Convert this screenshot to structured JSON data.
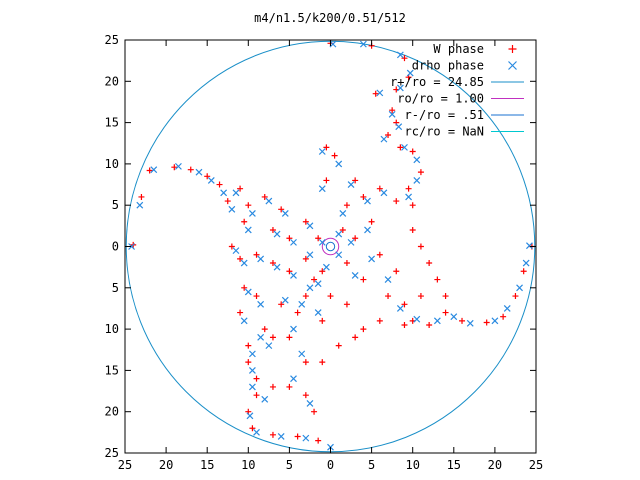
{
  "chart_data": {
    "type": "scatter",
    "title": "m4/n1.5/k200/0.51/512",
    "xlim": [
      -25,
      25
    ],
    "ylim": [
      -25,
      25
    ],
    "ticks": [
      -25,
      -20,
      -15,
      -10,
      -5,
      0,
      5,
      10,
      15,
      20,
      25
    ],
    "tick_labels": [
      "25",
      "20",
      "15",
      "10",
      "5",
      "0",
      "5",
      "10",
      "15",
      "20",
      "25"
    ],
    "grid": false,
    "legend_position": "top-right",
    "series": [
      {
        "name": "W phase",
        "kind": "points",
        "marker": "plus",
        "color": "#ff0000",
        "points": [
          [
            0,
            24.6
          ],
          [
            5,
            24.3
          ],
          [
            9,
            22.8
          ],
          [
            9.5,
            20.5
          ],
          [
            8,
            19
          ],
          [
            5.5,
            18.5
          ],
          [
            7.5,
            16.5
          ],
          [
            8,
            15
          ],
          [
            7,
            13.5
          ],
          [
            8.5,
            12
          ],
          [
            10,
            11.5
          ],
          [
            11,
            9
          ],
          [
            9.5,
            7
          ],
          [
            10,
            5
          ],
          [
            -0.5,
            12
          ],
          [
            0.5,
            11
          ],
          [
            3,
            8
          ],
          [
            4,
            6
          ],
          [
            6,
            7
          ],
          [
            -0.5,
            8
          ],
          [
            2,
            5
          ],
          [
            5,
            3
          ],
          [
            3,
            1
          ],
          [
            1.5,
            2
          ],
          [
            8,
            5.5
          ],
          [
            -24,
            0.2
          ],
          [
            -23,
            6
          ],
          [
            -22,
            9.2
          ],
          [
            -19,
            9.6
          ],
          [
            -17,
            9.3
          ],
          [
            -15,
            8.5
          ],
          [
            -13.5,
            7.5
          ],
          [
            -12.5,
            5.5
          ],
          [
            -11,
            7
          ],
          [
            -10,
            5
          ],
          [
            -10.5,
            3
          ],
          [
            -8,
            6
          ],
          [
            -6,
            4.5
          ],
          [
            -7,
            2
          ],
          [
            -5,
            1
          ],
          [
            -3,
            3
          ],
          [
            -1.5,
            1
          ],
          [
            -12,
            0
          ],
          [
            -11,
            -1.5
          ],
          [
            -9,
            -1
          ],
          [
            -7,
            -2
          ],
          [
            -5,
            -3
          ],
          [
            -3,
            -1.5
          ],
          [
            -2,
            -4
          ],
          [
            -10.5,
            -5
          ],
          [
            -11,
            -8
          ],
          [
            -9,
            -6
          ],
          [
            -8,
            -10
          ],
          [
            -10,
            -12
          ],
          [
            -7,
            -11
          ],
          [
            -10,
            -14
          ],
          [
            -9,
            -16
          ],
          [
            -7,
            -17
          ],
          [
            -9,
            -18
          ],
          [
            -10,
            -20
          ],
          [
            -9.5,
            -22
          ],
          [
            -7,
            -22.8
          ],
          [
            -4,
            -23
          ],
          [
            -1.5,
            -23.5
          ],
          [
            -2,
            -20
          ],
          [
            -5,
            -17
          ],
          [
            -3,
            -14
          ],
          [
            -5,
            -11
          ],
          [
            -4,
            -8
          ],
          [
            -1,
            -9
          ],
          [
            -6,
            -7
          ],
          [
            -3,
            -6
          ],
          [
            -1,
            -3
          ],
          [
            2,
            -2
          ],
          [
            4,
            -4
          ],
          [
            6,
            -1
          ],
          [
            8,
            -3
          ],
          [
            7,
            -6
          ],
          [
            9,
            -7
          ],
          [
            10,
            -9
          ],
          [
            12,
            -9.5
          ],
          [
            14,
            -8
          ],
          [
            16,
            -9
          ],
          [
            19,
            -9.2
          ],
          [
            21,
            -8.5
          ],
          [
            22.5,
            -6
          ],
          [
            23.5,
            -3
          ],
          [
            24.5,
            0
          ],
          [
            10,
            2
          ],
          [
            11,
            0
          ],
          [
            12,
            -2
          ],
          [
            13,
            -4
          ],
          [
            14,
            -6
          ],
          [
            11,
            -6
          ],
          [
            9,
            -9.5
          ],
          [
            6,
            -9
          ],
          [
            4,
            -10
          ],
          [
            2,
            -7
          ],
          [
            0,
            -6
          ],
          [
            -1,
            -14
          ],
          [
            1,
            -12
          ],
          [
            3,
            -11
          ],
          [
            -3,
            -18
          ]
        ]
      },
      {
        "name": "drho phase",
        "kind": "points",
        "marker": "cross",
        "color": "#2a8ae0",
        "points": [
          [
            0.3,
            24.5
          ],
          [
            4,
            24.5
          ],
          [
            8.5,
            23.2
          ],
          [
            9.7,
            21
          ],
          [
            8.5,
            19.2
          ],
          [
            6,
            18.6
          ],
          [
            7.5,
            16
          ],
          [
            8.3,
            14.5
          ],
          [
            6.5,
            13
          ],
          [
            9,
            12
          ],
          [
            10.5,
            10.5
          ],
          [
            10.5,
            8
          ],
          [
            9.5,
            6
          ],
          [
            -1,
            11.5
          ],
          [
            1,
            10
          ],
          [
            2.5,
            7.5
          ],
          [
            4.5,
            5.5
          ],
          [
            6.5,
            6.5
          ],
          [
            -1,
            7
          ],
          [
            1.5,
            4
          ],
          [
            4.5,
            2
          ],
          [
            2.5,
            0.5
          ],
          [
            1,
            1.5
          ],
          [
            -24.2,
            0
          ],
          [
            -23.2,
            5
          ],
          [
            -21.5,
            9.3
          ],
          [
            -18.5,
            9.7
          ],
          [
            -16,
            9
          ],
          [
            -14.5,
            8
          ],
          [
            -13,
            6.5
          ],
          [
            -12,
            4.5
          ],
          [
            -11.5,
            6.5
          ],
          [
            -9.5,
            4
          ],
          [
            -10,
            2
          ],
          [
            -7.5,
            5.5
          ],
          [
            -5.5,
            4
          ],
          [
            -6.5,
            1.5
          ],
          [
            -4.5,
            0.5
          ],
          [
            -2.5,
            2.5
          ],
          [
            -1,
            0.5
          ],
          [
            -11.5,
            -0.5
          ],
          [
            -10.5,
            -2
          ],
          [
            -8.5,
            -1.5
          ],
          [
            -6.5,
            -2.5
          ],
          [
            -4.5,
            -3.5
          ],
          [
            -2.5,
            -1
          ],
          [
            -1.5,
            -4.5
          ],
          [
            -10,
            -5.5
          ],
          [
            -10.5,
            -9
          ],
          [
            -8.5,
            -7
          ],
          [
            -8.5,
            -11
          ],
          [
            -9.5,
            -13
          ],
          [
            -7.5,
            -12
          ],
          [
            -9.5,
            -15
          ],
          [
            -9.5,
            -17
          ],
          [
            -8,
            -18.5
          ],
          [
            -9.8,
            -20.5
          ],
          [
            -9,
            -22.5
          ],
          [
            -6,
            -23
          ],
          [
            -3,
            -23.2
          ],
          [
            0,
            -24.3
          ],
          [
            -2.5,
            -19
          ],
          [
            -4.5,
            -16
          ],
          [
            -3.5,
            -13
          ],
          [
            -4.5,
            -10
          ],
          [
            -3.5,
            -7
          ],
          [
            -1.5,
            -8
          ],
          [
            -5.5,
            -6.5
          ],
          [
            -2.5,
            -5
          ],
          [
            -0.5,
            -2.5
          ],
          [
            1,
            -1
          ],
          [
            3,
            -3.5
          ],
          [
            5,
            -1.5
          ],
          [
            7,
            -4
          ],
          [
            8.5,
            -7.5
          ],
          [
            10.5,
            -8.8
          ],
          [
            13,
            -9
          ],
          [
            15,
            -8.5
          ],
          [
            17,
            -9.3
          ],
          [
            20,
            -9
          ],
          [
            21.5,
            -7.5
          ],
          [
            23,
            -5
          ],
          [
            23.8,
            -2
          ],
          [
            24.2,
            0.1
          ]
        ]
      },
      {
        "name": "r+/ro = 24.85",
        "kind": "circle",
        "radius": 24.85,
        "color": "#1a8fc8"
      },
      {
        "name": "ro/ro = 1.00",
        "kind": "circle",
        "radius": 1.0,
        "color": "#c030c0"
      },
      {
        "name": "r-/ro = .51",
        "kind": "circle",
        "radius": 0.51,
        "color": "#1a70d0"
      },
      {
        "name": "rc/ro = NaN",
        "kind": "circle",
        "radius": null,
        "color": "#00c8d0"
      }
    ]
  }
}
